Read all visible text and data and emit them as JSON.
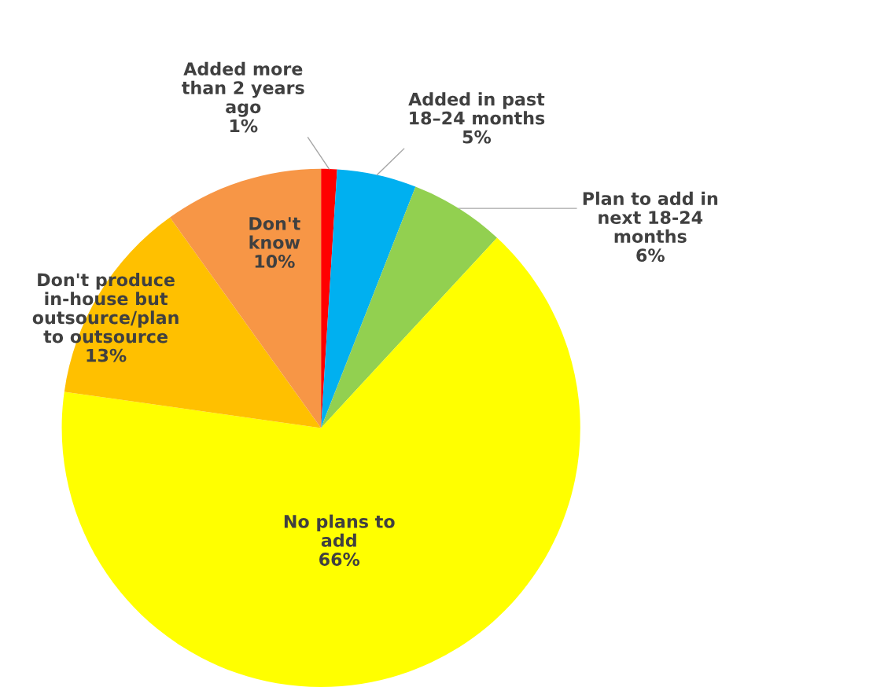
{
  "chart_data": {
    "type": "pie",
    "categories": [
      "Added more than 2 years ago",
      "Added in past 18–24 months",
      "Plan to add in next 18-24 months",
      "No plans to add",
      "Don't produce in-house but outsource/plan to outsource",
      "Don't know"
    ],
    "values": [
      1,
      5,
      6,
      66,
      13,
      10
    ],
    "value_labels": [
      "1%",
      "5%",
      "6%",
      "66%",
      "13%",
      "10%"
    ],
    "colors": [
      "#ff0000",
      "#00b0f0",
      "#92d050",
      "#ffff00",
      "#ffc000",
      "#f79646"
    ]
  }
}
